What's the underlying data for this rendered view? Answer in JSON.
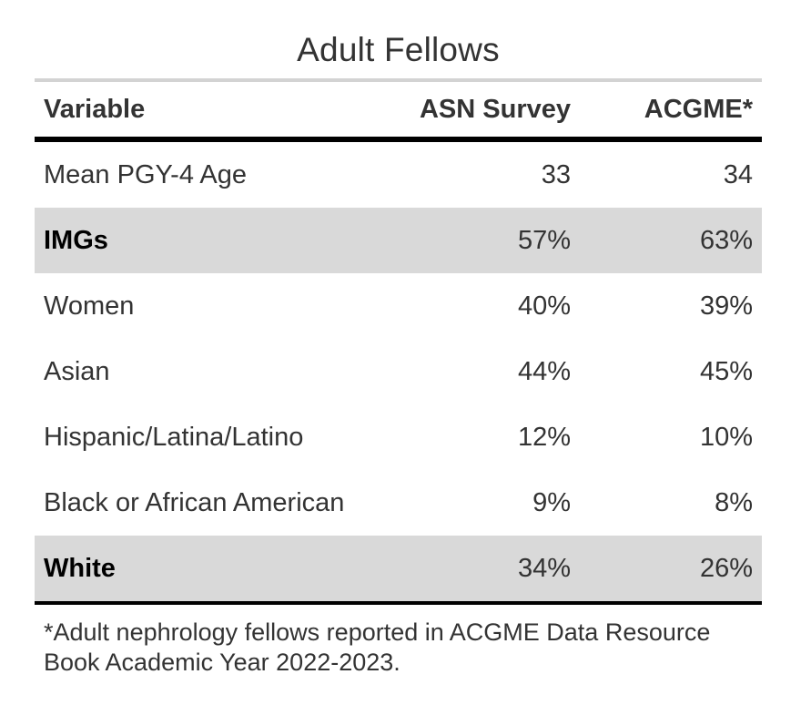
{
  "title": "Adult Fellows",
  "columns": [
    "Variable",
    "ASN Survey",
    "ACGME*"
  ],
  "rows": [
    {
      "variable": "Mean PGY-4 Age",
      "asn": "33",
      "acgme": "34",
      "highlight": false
    },
    {
      "variable": "IMGs",
      "asn": "57%",
      "acgme": "63%",
      "highlight": true
    },
    {
      "variable": "Women",
      "asn": "40%",
      "acgme": "39%",
      "highlight": false
    },
    {
      "variable": "Asian",
      "asn": "44%",
      "acgme": "45%",
      "highlight": false
    },
    {
      "variable": "Hispanic/Latina/Latino",
      "asn": "12%",
      "acgme": "10%",
      "highlight": false
    },
    {
      "variable": "Black or African American",
      "asn": "9%",
      "acgme": "8%",
      "highlight": false
    },
    {
      "variable": "White",
      "asn": "34%",
      "acgme": "26%",
      "highlight": true
    }
  ],
  "footnote": "*Adult nephrology fellows reported in ACGME Data Resource Book Academic Year 2022-2023.",
  "colors": {
    "highlight_row": "#d9d9d9",
    "text": "#333333",
    "rule": "#000000",
    "top_rule": "#d3d3d3"
  }
}
